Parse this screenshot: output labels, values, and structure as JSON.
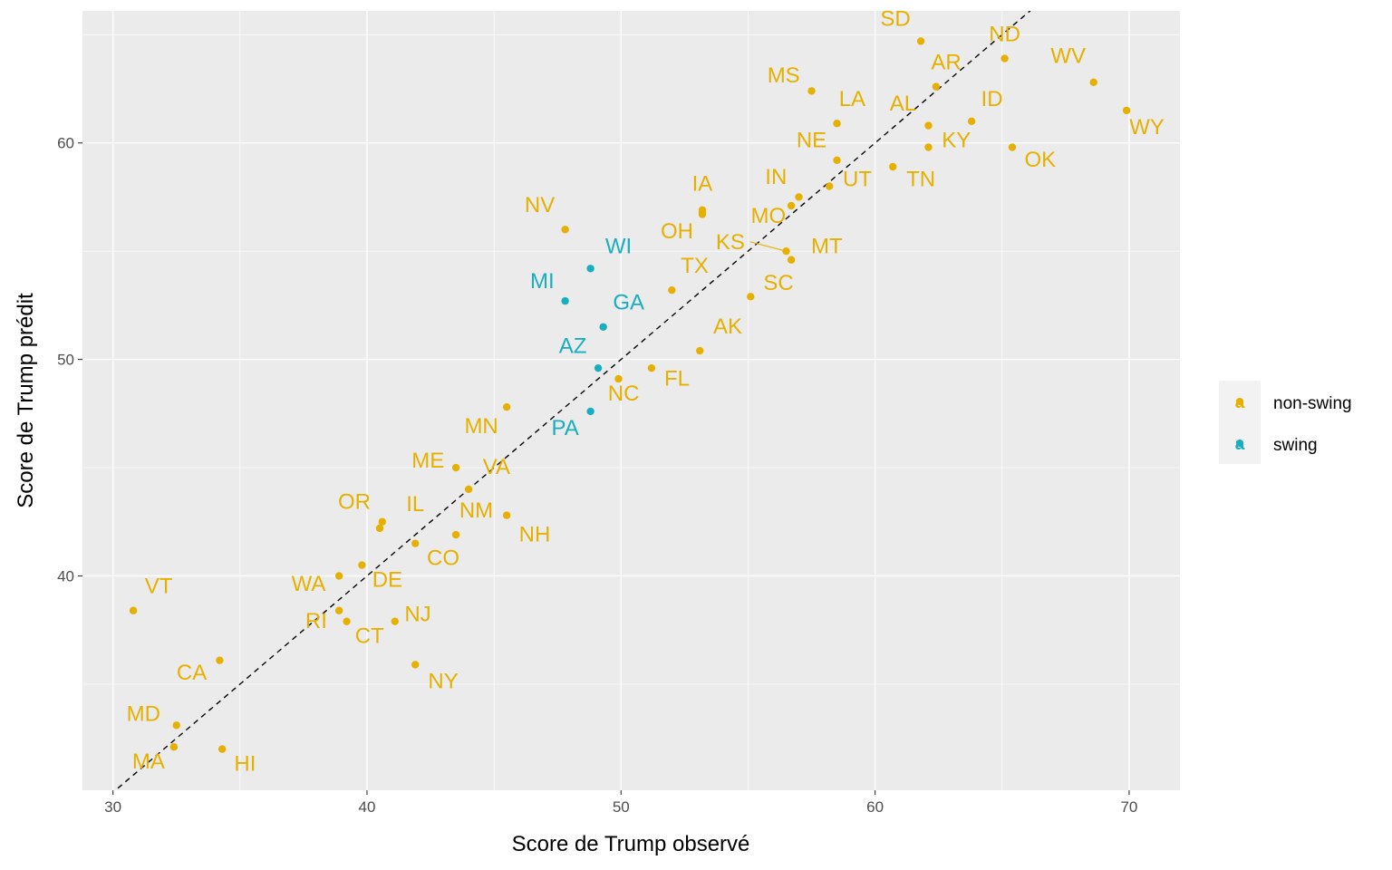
{
  "colors": {
    "non_swing": "#E6B000",
    "swing": "#18AEBF",
    "panel": "#EBEBEB"
  },
  "chart_data": {
    "type": "scatter",
    "xlabel": "Score de Trump observé",
    "ylabel": "Score de Trump prédit",
    "xlim": [
      28.8,
      72.0
    ],
    "ylim": [
      30.1,
      66.1
    ],
    "xticks": [
      30,
      40,
      50,
      60,
      70
    ],
    "yticks": [
      40,
      50,
      60
    ],
    "grid": true,
    "reference_line": {
      "type": "identity",
      "slope": 1,
      "intercept": 0,
      "style": "dashed"
    },
    "legend": {
      "placement": "right",
      "entries": [
        {
          "key": "non-swing",
          "label": "non-swing",
          "glyph": "a"
        },
        {
          "key": "swing",
          "label": "swing",
          "glyph": "a"
        }
      ]
    },
    "points": [
      {
        "label": "SD",
        "x": 61.8,
        "y": 64.7,
        "group": "non-swing",
        "ldx": -1.0,
        "ldy": 0.7
      },
      {
        "label": "ND",
        "x": 65.1,
        "y": 63.9,
        "group": "non-swing",
        "ldx": 0.0,
        "ldy": 0.8
      },
      {
        "label": "WV",
        "x": 68.6,
        "y": 62.8,
        "group": "non-swing",
        "ldx": -1.0,
        "ldy": 0.9
      },
      {
        "label": "AR",
        "x": 62.4,
        "y": 62.6,
        "group": "non-swing",
        "ldx": 0.4,
        "ldy": 0.8
      },
      {
        "label": "MS",
        "x": 57.5,
        "y": 62.4,
        "group": "non-swing",
        "ldx": -1.1,
        "ldy": 0.4
      },
      {
        "label": "WY",
        "x": 69.9,
        "y": 61.5,
        "group": "non-swing",
        "ldx": 0.8,
        "ldy": -1.1
      },
      {
        "label": "ID",
        "x": 63.8,
        "y": 61.0,
        "group": "non-swing",
        "ldx": 0.8,
        "ldy": 0.7
      },
      {
        "label": "LA",
        "x": 58.5,
        "y": 60.9,
        "group": "non-swing",
        "ldx": 0.6,
        "ldy": 0.8
      },
      {
        "label": "AL",
        "x": 62.1,
        "y": 60.8,
        "group": "non-swing",
        "ldx": -1.0,
        "ldy": 0.7
      },
      {
        "label": "KY",
        "x": 62.1,
        "y": 59.8,
        "group": "non-swing",
        "ldx": 1.1,
        "ldy": 0.0
      },
      {
        "label": "OK",
        "x": 65.4,
        "y": 59.8,
        "group": "non-swing",
        "ldx": 1.1,
        "ldy": -0.9
      },
      {
        "label": "NE",
        "x": 58.5,
        "y": 59.2,
        "group": "non-swing",
        "ldx": -1.0,
        "ldy": 0.6
      },
      {
        "label": "TN",
        "x": 60.7,
        "y": 58.9,
        "group": "non-swing",
        "ldx": 1.1,
        "ldy": -0.9
      },
      {
        "label": "UT",
        "x": 58.2,
        "y": 58.0,
        "group": "non-swing",
        "ldx": 1.1,
        "ldy": 0.0
      },
      {
        "label": "IN",
        "x": 57.0,
        "y": 57.5,
        "group": "non-swing",
        "ldx": -0.9,
        "ldy": 0.6
      },
      {
        "label": "MO",
        "x": 56.7,
        "y": 57.1,
        "group": "non-swing",
        "ldx": -0.9,
        "ldy": -0.8
      },
      {
        "label": "IA",
        "x": 53.2,
        "y": 56.9,
        "group": "non-swing",
        "ldx": 0.0,
        "ldy": 0.9
      },
      {
        "label": "IA",
        "x": 53.2,
        "y": 56.7,
        "group": "non-swing",
        "ldx": 0.0,
        "ldy": 0.0,
        "nolabel": true
      },
      {
        "label": "NV",
        "x": 47.8,
        "y": 56.0,
        "group": "non-swing",
        "ldx": -1.0,
        "ldy": 0.8
      },
      {
        "label": "OH",
        "x": 53.2,
        "y": 56.8,
        "group": "non-swing",
        "ldx": -1.0,
        "ldy": -1.2
      },
      {
        "label": "KS",
        "x": 56.5,
        "y": 55.0,
        "group": "non-swing",
        "ldx": -2.2,
        "ldy": 0.1,
        "segment": true
      },
      {
        "label": "MT",
        "x": 56.7,
        "y": 54.6,
        "group": "non-swing",
        "ldx": 1.4,
        "ldy": 0.3
      },
      {
        "label": "TX",
        "x": 52.0,
        "y": 53.2,
        "group": "non-swing",
        "ldx": 0.9,
        "ldy": 0.8
      },
      {
        "label": "SC",
        "x": 55.1,
        "y": 52.9,
        "group": "non-swing",
        "ldx": 1.1,
        "ldy": 0.3
      },
      {
        "label": "AK",
        "x": 53.1,
        "y": 50.4,
        "group": "non-swing",
        "ldx": 1.1,
        "ldy": 0.8
      },
      {
        "label": "FL",
        "x": 51.2,
        "y": 49.6,
        "group": "non-swing",
        "ldx": 1.0,
        "ldy": -0.8
      },
      {
        "label": "NC",
        "x": 49.9,
        "y": 49.1,
        "group": "non-swing",
        "ldx": 0.2,
        "ldy": -1.0
      },
      {
        "label": "MN",
        "x": 45.5,
        "y": 47.8,
        "group": "non-swing",
        "ldx": -1.0,
        "ldy": -1.2
      },
      {
        "label": "ME",
        "x": 43.5,
        "y": 45.0,
        "group": "non-swing",
        "ldx": -1.1,
        "ldy": 0.0
      },
      {
        "label": "VA",
        "x": 44.0,
        "y": 44.0,
        "group": "non-swing",
        "ldx": 1.1,
        "ldy": 0.7
      },
      {
        "label": "OR",
        "x": 40.6,
        "y": 42.5,
        "group": "non-swing",
        "ldx": -1.1,
        "ldy": 0.6
      },
      {
        "label": "IL",
        "x": 40.5,
        "y": 42.2,
        "group": "non-swing",
        "ldx": 1.4,
        "ldy": 0.8
      },
      {
        "label": "NH",
        "x": 45.5,
        "y": 42.8,
        "group": "non-swing",
        "ldx": 1.1,
        "ldy": -1.2
      },
      {
        "label": "NM",
        "x": 43.5,
        "y": 41.9,
        "group": "non-swing",
        "ldx": 0.8,
        "ldy": 0.8
      },
      {
        "label": "CO",
        "x": 41.9,
        "y": 41.5,
        "group": "non-swing",
        "ldx": 1.1,
        "ldy": -1.0
      },
      {
        "label": "DE",
        "x": 39.8,
        "y": 40.5,
        "group": "non-swing",
        "ldx": 1.0,
        "ldy": -1.0
      },
      {
        "label": "WA",
        "x": 38.9,
        "y": 40.0,
        "group": "non-swing",
        "ldx": -1.2,
        "ldy": -0.7
      },
      {
        "label": "VT",
        "x": 30.8,
        "y": 38.4,
        "group": "non-swing",
        "ldx": 1.0,
        "ldy": 0.8
      },
      {
        "label": "RI",
        "x": 38.9,
        "y": 38.4,
        "group": "non-swing",
        "ldx": -0.9,
        "ldy": -0.8
      },
      {
        "label": "NJ",
        "x": 41.1,
        "y": 37.9,
        "group": "non-swing",
        "ldx": 0.9,
        "ldy": 0.0
      },
      {
        "label": "CT",
        "x": 39.2,
        "y": 37.9,
        "group": "non-swing",
        "ldx": 0.9,
        "ldy": -1.0
      },
      {
        "label": "CA",
        "x": 34.2,
        "y": 36.1,
        "group": "non-swing",
        "ldx": -1.1,
        "ldy": -0.9
      },
      {
        "label": "NY",
        "x": 41.9,
        "y": 35.9,
        "group": "non-swing",
        "ldx": 1.1,
        "ldy": -1.1
      },
      {
        "label": "MD",
        "x": 32.5,
        "y": 33.1,
        "group": "non-swing",
        "ldx": -1.3,
        "ldy": 0.2
      },
      {
        "label": "MA",
        "x": 32.4,
        "y": 32.1,
        "group": "non-swing",
        "ldx": -1.0,
        "ldy": -1.0
      },
      {
        "label": "HI",
        "x": 34.3,
        "y": 32.0,
        "group": "non-swing",
        "ldx": 0.9,
        "ldy": -1.0
      },
      {
        "label": "WI",
        "x": 48.8,
        "y": 54.2,
        "group": "swing",
        "ldx": 1.1,
        "ldy": 0.7
      },
      {
        "label": "MI",
        "x": 47.8,
        "y": 52.7,
        "group": "swing",
        "ldx": -0.9,
        "ldy": 0.6
      },
      {
        "label": "GA",
        "x": 49.3,
        "y": 51.5,
        "group": "swing",
        "ldx": 1.0,
        "ldy": 0.8
      },
      {
        "label": "AZ",
        "x": 49.1,
        "y": 49.6,
        "group": "swing",
        "ldx": -1.0,
        "ldy": 0.7
      },
      {
        "label": "PA",
        "x": 48.8,
        "y": 47.6,
        "group": "swing",
        "ldx": -1.0,
        "ldy": -1.1
      }
    ]
  }
}
